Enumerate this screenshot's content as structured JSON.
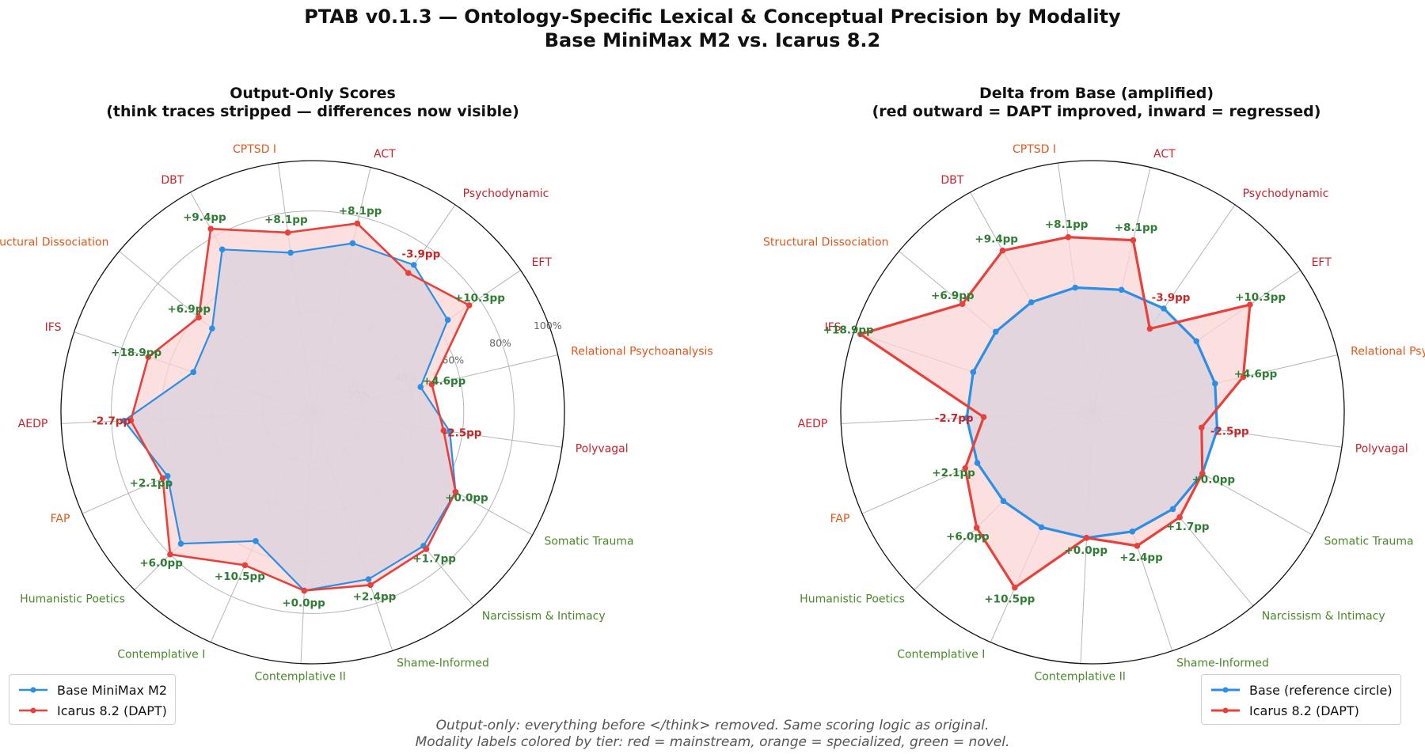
{
  "figure": {
    "title_line1": "PTAB v0.1.3 — Ontology-Specific Lexical & Conceptual Precision by Modality",
    "title_line2": "Base MiniMax M2 vs. Icarus 8.2",
    "footnote_line1": "Output-only: everything before </think> removed. Same scoring logic as original.",
    "footnote_line2": "Modality labels colored by tier: red = mainstream, orange = specialized, green = novel."
  },
  "colors": {
    "base": "#2b8fe6",
    "dapt": "#e8413b",
    "dapt_fill": "#fbd4d4",
    "overlap_fill": "#ddd3dd",
    "mainstream": "#c8232c",
    "specialized": "#e0581a",
    "novel": "#4a8a2a",
    "delta_pos": "#2e7d32",
    "delta_neg": "#c62828",
    "grid": "#b5b5b5"
  },
  "chart_data": [
    {
      "type": "radar",
      "title_line1": "Output-Only Scores",
      "title_line2": "(think traces stripped — differences now visible)",
      "rlim": [
        0,
        100
      ],
      "r_ticks": [
        20,
        40,
        60,
        80,
        100
      ],
      "r_tick_labels": [
        "20%",
        "40%",
        "60%",
        "80%",
        "100%"
      ],
      "categories": [
        "Polyvagal",
        "Relational Psychoanalysis",
        "EFT",
        "Psychodynamic",
        "ACT",
        "CPTSD I",
        "DBT",
        "Structural Dissociation",
        "IFS",
        "AEDP",
        "FAP",
        "Humanistic Poetics",
        "Contemplative I",
        "Contemplative II",
        "Shame-Informed",
        "Narcissism & Intimacy",
        "Somatic Trauma"
      ],
      "category_tiers": [
        "mainstream",
        "specialized",
        "mainstream",
        "mainstream",
        "mainstream",
        "specialized",
        "mainstream",
        "specialized",
        "mainstream",
        "mainstream",
        "specialized",
        "novel",
        "novel",
        "novel",
        "novel",
        "novel",
        "novel"
      ],
      "series": [
        {
          "name": "Base MiniMax M2",
          "values": [
            55.0,
            44.0,
            65.0,
            71.0,
            69.0,
            64.0,
            74.0,
            52.0,
            50.0,
            75.0,
            63.0,
            74.0,
            56.0,
            71.0,
            70.0,
            69.0,
            65.0
          ]
        },
        {
          "name": "Icarus 8.2 (DAPT)",
          "values": [
            52.5,
            48.6,
            75.3,
            67.1,
            77.1,
            72.1,
            83.4,
            58.9,
            68.9,
            72.3,
            65.1,
            80.0,
            66.5,
            71.0,
            72.4,
            70.7,
            65.0
          ]
        }
      ],
      "delta_labels": [
        "-2.5pp",
        "+4.6pp",
        "+10.3pp",
        "-3.9pp",
        "+8.1pp",
        "+8.1pp",
        "+9.4pp",
        "+6.9pp",
        "+18.9pp",
        "-2.7pp",
        "+2.1pp",
        "+6.0pp",
        "+10.5pp",
        "+0.0pp",
        "+2.4pp",
        "+1.7pp",
        "+0.0pp"
      ],
      "legend": {
        "position": "lower-left",
        "entries": [
          "Base MiniMax M2",
          "Icarus 8.2 (DAPT)"
        ]
      }
    },
    {
      "type": "radar",
      "title_line1": "Delta from Base (amplified)",
      "title_line2": "(red outward = DAPT improved, inward = regressed)",
      "categories": [
        "Polyvagal",
        "Relational Psychoanalysis",
        "EFT",
        "Psychodynamic",
        "ACT",
        "CPTSD I",
        "DBT",
        "Structural Dissociation",
        "IFS",
        "AEDP",
        "FAP",
        "Humanistic Poetics",
        "Contemplative I",
        "Contemplative II",
        "Shame-Informed",
        "Narcissism & Intimacy",
        "Somatic Trauma"
      ],
      "base_reference_level": 50,
      "series": [
        {
          "name": "Base (reference circle)",
          "values": [
            50,
            50,
            50,
            50,
            50,
            50,
            50,
            50,
            50,
            50,
            50,
            50,
            50,
            50,
            50,
            50,
            50
          ]
        },
        {
          "name": "Icarus 8.2 (DAPT)",
          "delta_pp": [
            -2.5,
            4.6,
            10.3,
            -3.9,
            8.1,
            8.1,
            9.4,
            6.9,
            18.9,
            -2.7,
            2.1,
            6.0,
            10.5,
            0.0,
            2.4,
            1.7,
            0.0
          ]
        }
      ],
      "delta_labels": [
        "-2.5pp",
        "+4.6pp",
        "+10.3pp",
        "-3.9pp",
        "+8.1pp",
        "+8.1pp",
        "+9.4pp",
        "+6.9pp",
        "+18.9pp",
        "-2.7pp",
        "+2.1pp",
        "+6.0pp",
        "+10.5pp",
        "+0.0pp",
        "+2.4pp",
        "+1.7pp",
        "+0.0pp"
      ],
      "legend": {
        "position": "lower-right",
        "entries": [
          "Base (reference circle)",
          "Icarus 8.2 (DAPT)"
        ]
      }
    }
  ]
}
